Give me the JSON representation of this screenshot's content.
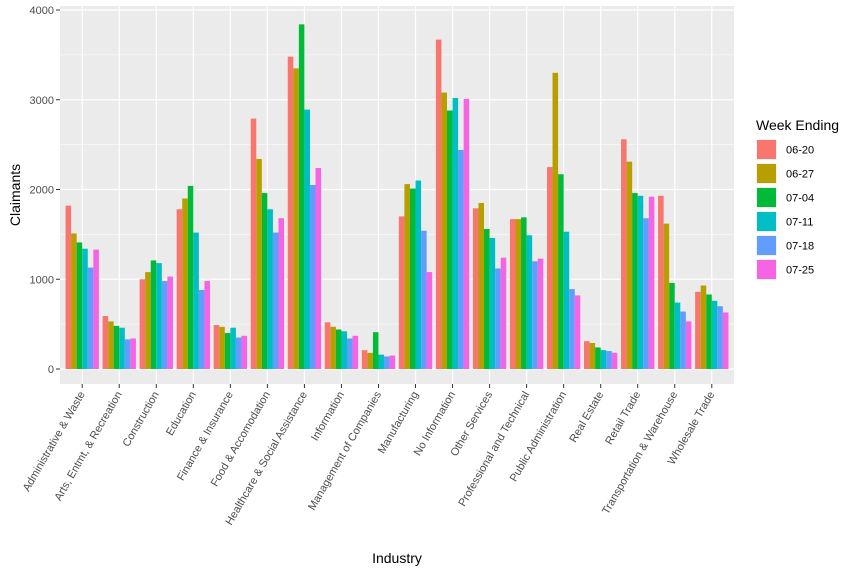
{
  "chart_data": {
    "type": "bar",
    "title": "",
    "xlabel": "Industry",
    "ylabel": "Claimants",
    "ylim": [
      0,
      4000
    ],
    "yticks": [
      "0",
      "1000",
      "2000",
      "3000",
      "4000"
    ],
    "ytick_values": [
      0,
      1000,
      2000,
      3000,
      4000
    ],
    "grid": true,
    "legend": {
      "title": "Week Ending",
      "position": "right"
    },
    "categories": [
      "Administrative & Waste",
      "Arts, Entmt, & Recreation",
      "Construction",
      "Education",
      "Finance & Insurance",
      "Food & Accomodation",
      "Healthcare & Social Assistance",
      "Information",
      "Management of Companies",
      "Manufacturing",
      "No Information",
      "Other Services",
      "Professional and Technical",
      "Public Administration",
      "Real Estate",
      "Retail Trade",
      "Transportation & Warehouse",
      "Wholesale Trade"
    ],
    "series": [
      {
        "name": "06-20",
        "color": "#F8766D",
        "values": [
          1820,
          590,
          1000,
          1780,
          490,
          2790,
          3480,
          520,
          210,
          1700,
          3670,
          1790,
          1670,
          2250,
          310,
          2560,
          1930,
          860
        ]
      },
      {
        "name": "06-27",
        "color": "#B79F00",
        "values": [
          1510,
          530,
          1080,
          1900,
          470,
          2340,
          3350,
          470,
          180,
          2060,
          3080,
          1850,
          1670,
          3300,
          290,
          2310,
          1620,
          930
        ]
      },
      {
        "name": "07-04",
        "color": "#00BA38",
        "values": [
          1410,
          480,
          1210,
          2040,
          400,
          1960,
          3840,
          440,
          410,
          2010,
          2880,
          1560,
          1690,
          2170,
          240,
          1960,
          960,
          830
        ]
      },
      {
        "name": "07-11",
        "color": "#00BFC4",
        "values": [
          1340,
          460,
          1180,
          1520,
          460,
          1780,
          2890,
          420,
          160,
          2100,
          3020,
          1460,
          1490,
          1530,
          210,
          1930,
          740,
          760
        ]
      },
      {
        "name": "07-18",
        "color": "#619CFF",
        "values": [
          1130,
          330,
          980,
          880,
          350,
          1520,
          2050,
          340,
          140,
          1540,
          2440,
          1120,
          1200,
          890,
          200,
          1680,
          640,
          700
        ]
      },
      {
        "name": "07-25",
        "color": "#F564E3",
        "values": [
          1330,
          340,
          1030,
          980,
          370,
          1680,
          2240,
          370,
          150,
          1080,
          3010,
          1240,
          1230,
          820,
          180,
          1920,
          530,
          630
        ]
      }
    ]
  }
}
